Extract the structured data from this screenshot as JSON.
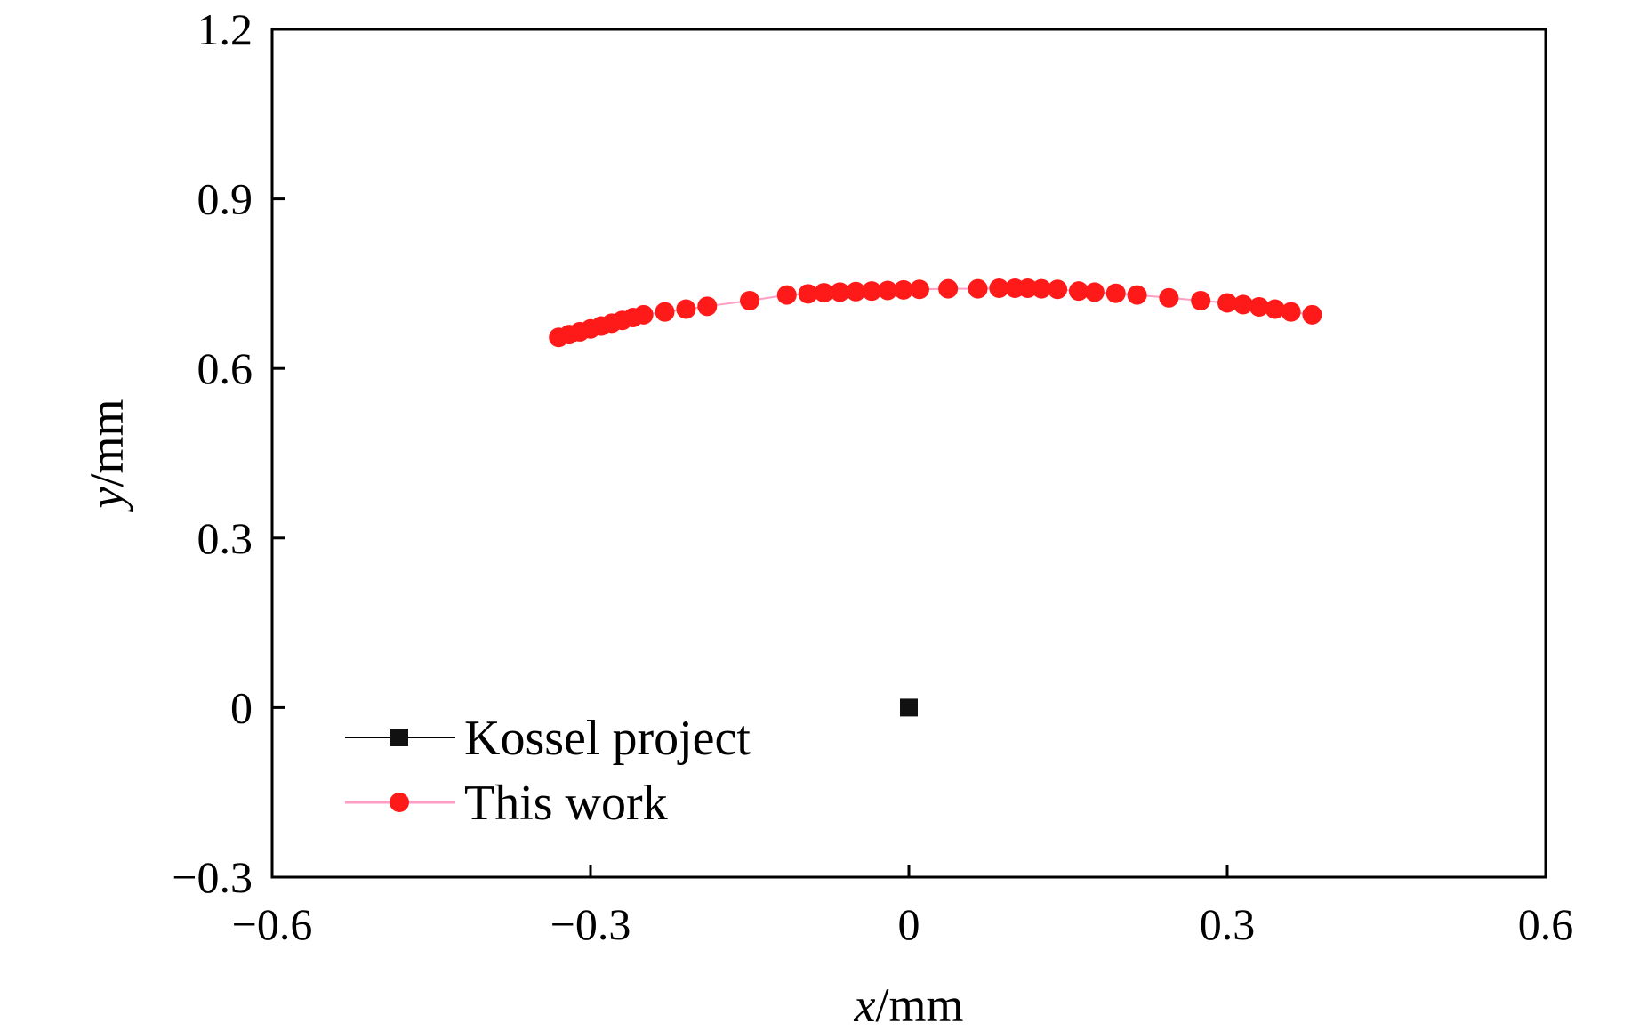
{
  "chart_data": {
    "type": "scatter",
    "title": "",
    "xlabel": {
      "var": "x",
      "unit": "/mm"
    },
    "ylabel": {
      "var": "y",
      "unit": "/mm"
    },
    "xlim": [
      -0.6,
      0.6
    ],
    "ylim": [
      -0.3,
      1.2
    ],
    "xticks": [
      -0.6,
      -0.3,
      0,
      0.3,
      0.6
    ],
    "xtick_labels": [
      "−0.6",
      "−0.3",
      "0",
      "0.3",
      "0.6"
    ],
    "yticks": [
      -0.3,
      0,
      0.3,
      0.6,
      0.9,
      1.2
    ],
    "ytick_labels": [
      "−0.3",
      "0",
      "0.3",
      "0.6",
      "0.9",
      "1.2"
    ],
    "grid": false,
    "legend_position": "bottom-left",
    "series": [
      {
        "name": "Kossel project",
        "color": "#111111",
        "line_color": "#000000",
        "marker": "square",
        "x": [
          0.0
        ],
        "y": [
          0.0
        ]
      },
      {
        "name": "This work",
        "color": "#ff1a1a",
        "line_color": "#ff9ec4",
        "marker": "circle",
        "x": [
          -0.33,
          -0.32,
          -0.31,
          -0.3,
          -0.29,
          -0.28,
          -0.27,
          -0.26,
          -0.25,
          -0.23,
          -0.21,
          -0.19,
          -0.15,
          -0.115,
          -0.095,
          -0.08,
          -0.065,
          -0.05,
          -0.035,
          -0.02,
          -0.005,
          0.01,
          0.037,
          0.065,
          0.085,
          0.1,
          0.112,
          0.125,
          0.14,
          0.16,
          0.175,
          0.195,
          0.215,
          0.245,
          0.275,
          0.3,
          0.315,
          0.33,
          0.345,
          0.36,
          0.38
        ],
        "y": [
          0.655,
          0.66,
          0.665,
          0.67,
          0.675,
          0.68,
          0.685,
          0.69,
          0.695,
          0.7,
          0.705,
          0.71,
          0.72,
          0.73,
          0.732,
          0.734,
          0.735,
          0.736,
          0.737,
          0.738,
          0.739,
          0.74,
          0.741,
          0.741,
          0.742,
          0.742,
          0.742,
          0.741,
          0.74,
          0.737,
          0.735,
          0.733,
          0.73,
          0.725,
          0.72,
          0.716,
          0.713,
          0.709,
          0.705,
          0.7,
          0.695
        ]
      }
    ]
  }
}
